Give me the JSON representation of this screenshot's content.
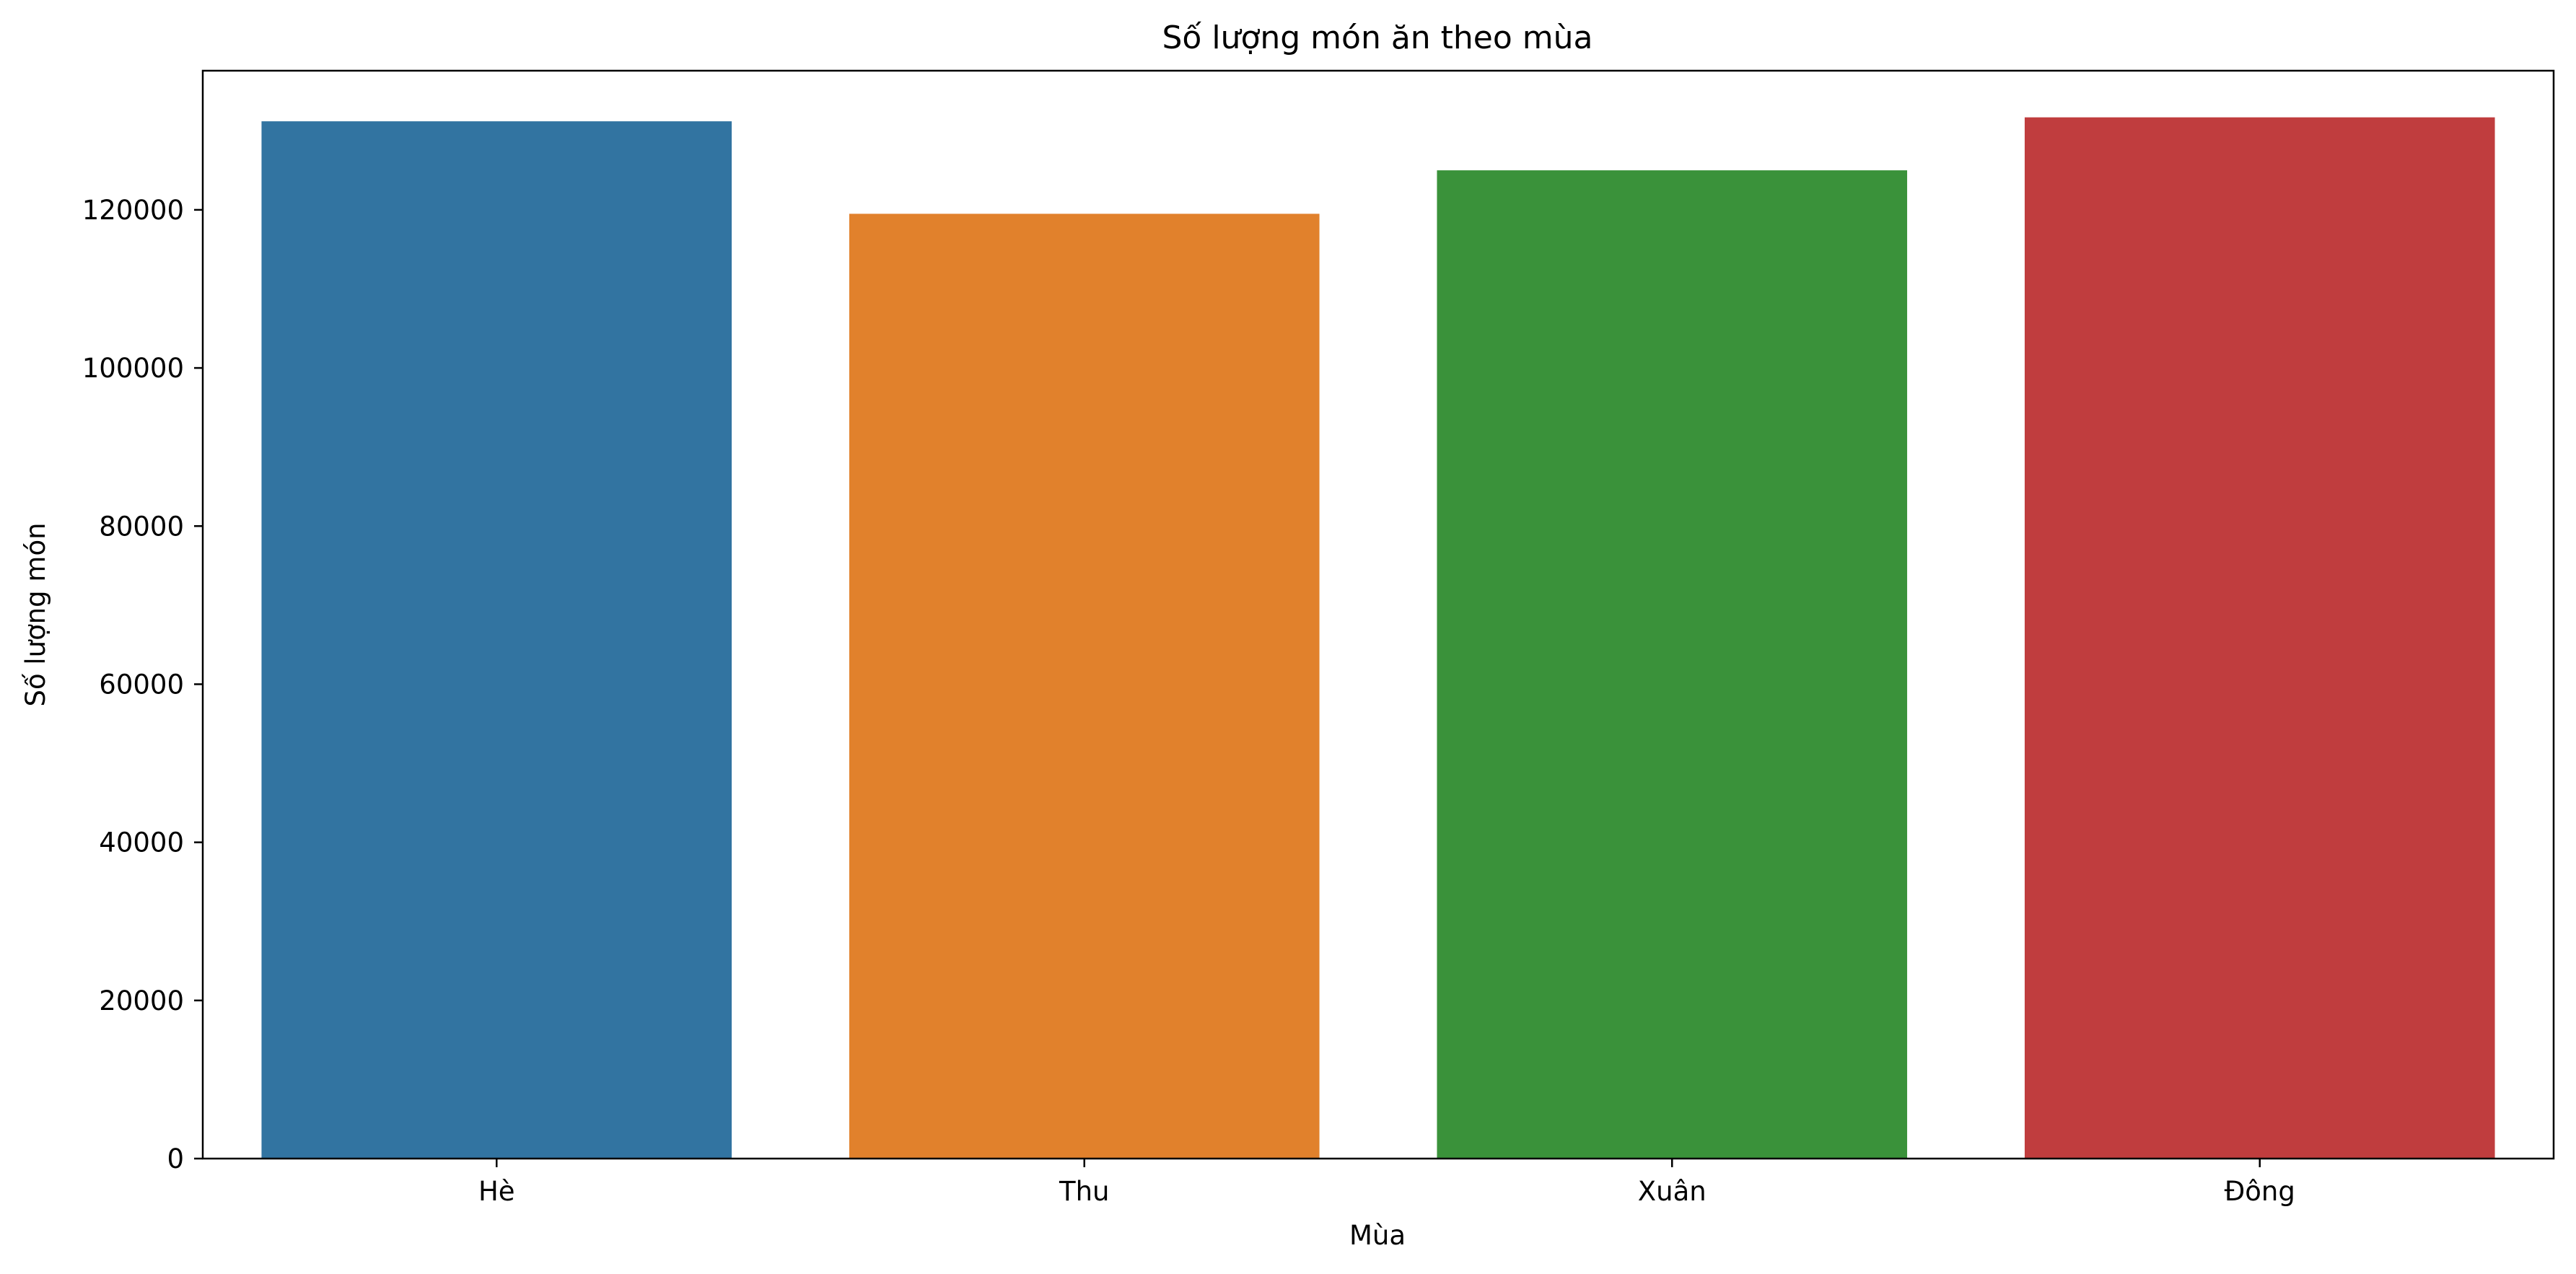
{
  "chart_data": {
    "type": "bar",
    "title": "Số lượng món ăn theo mùa",
    "xlabel": "Mùa",
    "ylabel": "Số lượng món",
    "categories": [
      "Hè",
      "Thu",
      "Xuân",
      "Đông"
    ],
    "values": [
      131200,
      119500,
      125000,
      131700
    ],
    "colors": [
      "#3274a1",
      "#e1812c",
      "#3a923a",
      "#c03d3e"
    ],
    "ylim": [
      0,
      137600
    ],
    "yticks": [
      0,
      20000,
      40000,
      60000,
      80000,
      100000,
      120000
    ],
    "ytick_labels": [
      "0",
      "20000",
      "40000",
      "60000",
      "80000",
      "100000",
      "120000"
    ],
    "grid": false,
    "legend": "none"
  }
}
